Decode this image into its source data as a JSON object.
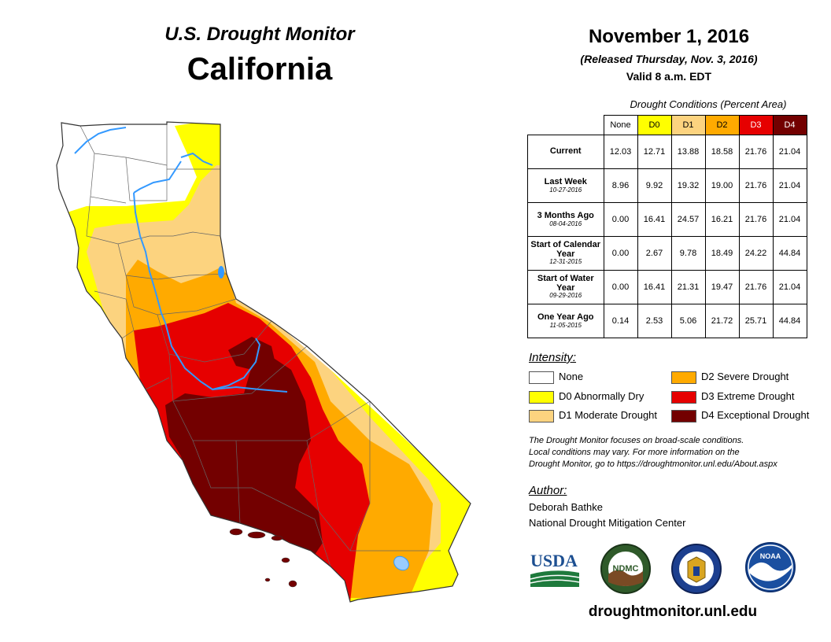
{
  "header": {
    "monitor_title": "U.S. Drought Monitor",
    "state": "California",
    "date": "November 1, 2016",
    "released": "(Released Thursday, Nov. 3, 2016)",
    "valid": "Valid 8 a.m. EDT"
  },
  "table": {
    "caption": "Drought Conditions (Percent Area)",
    "columns": [
      "None",
      "D0",
      "D1",
      "D2",
      "D3",
      "D4"
    ],
    "column_colors": [
      "#ffffff",
      "#ffff00",
      "#fcd37f",
      "#ffaa00",
      "#e60000",
      "#730000"
    ],
    "rows": [
      {
        "label": "Current",
        "sub": "",
        "values": [
          "12.03",
          "12.71",
          "13.88",
          "18.58",
          "21.76",
          "21.04"
        ]
      },
      {
        "label": "Last Week",
        "sub": "10-27-2016",
        "values": [
          "8.96",
          "9.92",
          "19.32",
          "19.00",
          "21.76",
          "21.04"
        ]
      },
      {
        "label": "3 Months Ago",
        "sub": "08-04-2016",
        "values": [
          "0.00",
          "16.41",
          "24.57",
          "16.21",
          "21.76",
          "21.04"
        ]
      },
      {
        "label": "Start of Calendar Year",
        "sub": "12-31-2015",
        "values": [
          "0.00",
          "2.67",
          "9.78",
          "18.49",
          "24.22",
          "44.84"
        ]
      },
      {
        "label": "Start of Water Year",
        "sub": "09-29-2016",
        "values": [
          "0.00",
          "16.41",
          "21.31",
          "19.47",
          "21.76",
          "21.04"
        ]
      },
      {
        "label": "One Year Ago",
        "sub": "11-05-2015",
        "values": [
          "0.14",
          "2.53",
          "5.06",
          "21.72",
          "25.71",
          "44.84"
        ]
      }
    ]
  },
  "legend": {
    "title": "Intensity:",
    "items": [
      {
        "label": "None",
        "color": "#ffffff"
      },
      {
        "label": "D0 Abnormally Dry",
        "color": "#ffff00"
      },
      {
        "label": "D1 Moderate Drought",
        "color": "#fcd37f"
      },
      {
        "label": "D2 Severe Drought",
        "color": "#ffaa00"
      },
      {
        "label": "D3 Extreme Drought",
        "color": "#e60000"
      },
      {
        "label": "D4 Exceptional Drought",
        "color": "#730000"
      }
    ]
  },
  "note": {
    "line1": "The Drought Monitor focuses on broad-scale conditions.",
    "line2": "Local conditions may vary. For more information on the",
    "line3": "Drought Monitor, go to https://droughtmonitor.unl.edu/About.aspx"
  },
  "author": {
    "label": "Author:",
    "name": "Deborah Bathke",
    "org": "National Drought Mitigation Center"
  },
  "logos": {
    "usda": "USDA",
    "ndmc": "NDMC",
    "noaa": "NOAA"
  },
  "footer": {
    "url": "droughtmonitor.unl.edu"
  },
  "icons": [
    "usda-logo-icon",
    "ndmc-logo-icon",
    "commerce-seal-icon",
    "noaa-logo-icon"
  ]
}
